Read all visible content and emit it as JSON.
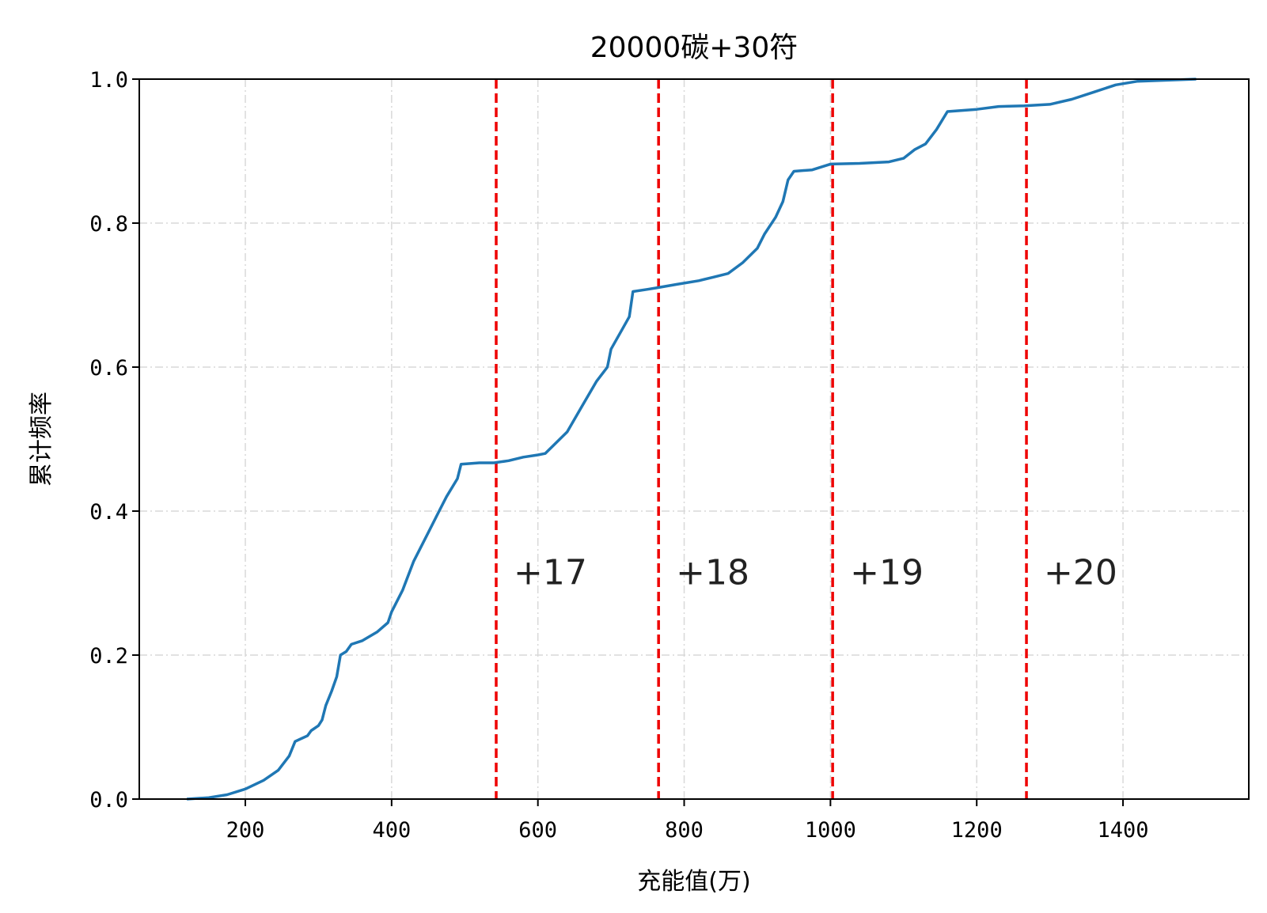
{
  "chart_data": {
    "type": "line",
    "title": "20000碳+30符",
    "xlabel": "充能值(万)",
    "ylabel": "累计频率",
    "xlim": [
      55,
      1572
    ],
    "ylim": [
      0.0,
      1.0
    ],
    "x_ticks": [
      "200",
      "400",
      "600",
      "800",
      "1000",
      "1200",
      "1400"
    ],
    "x_tick_values": [
      200,
      400,
      600,
      800,
      1000,
      1200,
      1400
    ],
    "y_ticks": [
      "0.0",
      "0.2",
      "0.4",
      "0.6",
      "0.8",
      "1.0"
    ],
    "y_tick_values": [
      0.0,
      0.2,
      0.4,
      0.6,
      0.8,
      1.0
    ],
    "grid": true,
    "series": [
      {
        "color": "#1f77b4",
        "points": [
          [
            120,
            0.0
          ],
          [
            150,
            0.002
          ],
          [
            175,
            0.006
          ],
          [
            200,
            0.014
          ],
          [
            225,
            0.026
          ],
          [
            245,
            0.04
          ],
          [
            260,
            0.06
          ],
          [
            268,
            0.08
          ],
          [
            285,
            0.088
          ],
          [
            290,
            0.095
          ],
          [
            300,
            0.102
          ],
          [
            305,
            0.11
          ],
          [
            310,
            0.13
          ],
          [
            318,
            0.15
          ],
          [
            325,
            0.17
          ],
          [
            330,
            0.2
          ],
          [
            338,
            0.205
          ],
          [
            345,
            0.215
          ],
          [
            360,
            0.22
          ],
          [
            380,
            0.232
          ],
          [
            395,
            0.245
          ],
          [
            400,
            0.26
          ],
          [
            415,
            0.29
          ],
          [
            430,
            0.33
          ],
          [
            450,
            0.37
          ],
          [
            465,
            0.4
          ],
          [
            475,
            0.42
          ],
          [
            490,
            0.445
          ],
          [
            495,
            0.465
          ],
          [
            520,
            0.467
          ],
          [
            540,
            0.467
          ],
          [
            560,
            0.47
          ],
          [
            580,
            0.475
          ],
          [
            600,
            0.478
          ],
          [
            610,
            0.48
          ],
          [
            620,
            0.49
          ],
          [
            640,
            0.51
          ],
          [
            660,
            0.545
          ],
          [
            680,
            0.58
          ],
          [
            695,
            0.6
          ],
          [
            700,
            0.625
          ],
          [
            715,
            0.652
          ],
          [
            725,
            0.67
          ],
          [
            730,
            0.705
          ],
          [
            750,
            0.708
          ],
          [
            762,
            0.71
          ],
          [
            790,
            0.715
          ],
          [
            820,
            0.72
          ],
          [
            840,
            0.725
          ],
          [
            860,
            0.73
          ],
          [
            880,
            0.745
          ],
          [
            900,
            0.765
          ],
          [
            910,
            0.785
          ],
          [
            925,
            0.808
          ],
          [
            935,
            0.83
          ],
          [
            942,
            0.86
          ],
          [
            950,
            0.872
          ],
          [
            975,
            0.874
          ],
          [
            1000,
            0.882
          ],
          [
            1040,
            0.883
          ],
          [
            1080,
            0.885
          ],
          [
            1100,
            0.89
          ],
          [
            1115,
            0.902
          ],
          [
            1130,
            0.91
          ],
          [
            1145,
            0.93
          ],
          [
            1160,
            0.955
          ],
          [
            1200,
            0.958
          ],
          [
            1230,
            0.962
          ],
          [
            1265,
            0.963
          ],
          [
            1300,
            0.965
          ],
          [
            1330,
            0.972
          ],
          [
            1360,
            0.982
          ],
          [
            1390,
            0.992
          ],
          [
            1420,
            0.997
          ],
          [
            1500,
            1.0
          ]
        ]
      }
    ],
    "reference_lines": [
      {
        "x": 543,
        "label": "+17"
      },
      {
        "x": 765,
        "label": "+18"
      },
      {
        "x": 1003,
        "label": "+19"
      },
      {
        "x": 1268,
        "label": "+20"
      }
    ],
    "reference_line_color": "#ee0000",
    "grid_color": "#d9d9d9",
    "text_color": "#000000"
  }
}
